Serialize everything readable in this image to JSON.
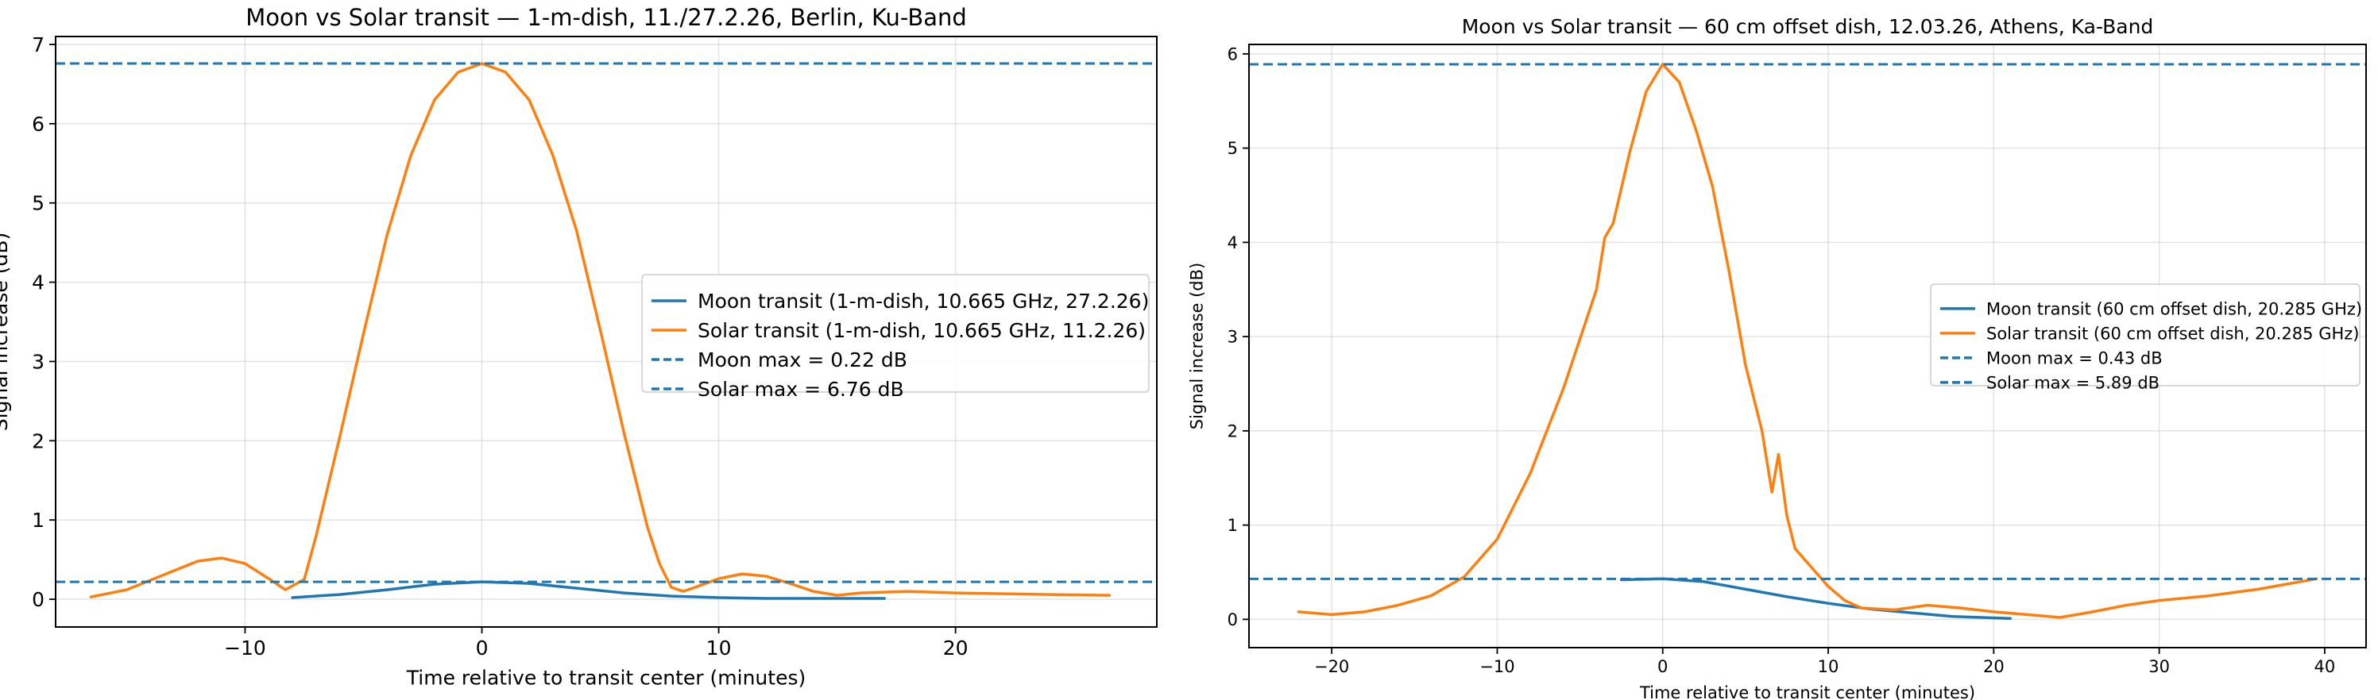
{
  "chart_data": [
    {
      "type": "line",
      "title": "Moon vs Solar transit — 1-m-dish, 11./27.2.26, Berlin, Ku-Band",
      "xlabel": "Time relative to transit center (minutes)",
      "ylabel": "Signal increase (dB)",
      "xlim": [
        -18,
        28.5
      ],
      "ylim": [
        -0.35,
        7.1
      ],
      "xticks": [
        -10,
        0,
        10,
        20
      ],
      "yticks": [
        0,
        1,
        2,
        3,
        4,
        5,
        6,
        7
      ],
      "grid": true,
      "legend_position": "center-right",
      "series": [
        {
          "name": "Moon transit (1-m-dish, 10.665 GHz, 27.2.26)",
          "color": "#1f77b4",
          "style": "solid",
          "x": [
            -8,
            -6,
            -4,
            -2,
            0,
            2,
            4,
            6,
            8,
            10,
            12,
            14,
            17
          ],
          "y": [
            0.02,
            0.06,
            0.12,
            0.19,
            0.22,
            0.2,
            0.14,
            0.08,
            0.04,
            0.02,
            0.01,
            0.01,
            0.01
          ]
        },
        {
          "name": "Solar transit (1-m-dish, 10.665 GHz, 11.2.26)",
          "color": "#ff7f0e",
          "style": "solid",
          "x": [
            -16.5,
            -15,
            -13.5,
            -12,
            -11,
            -10,
            -9,
            -8.3,
            -7.5,
            -7,
            -6,
            -5,
            -4,
            -3,
            -2,
            -1,
            0,
            1,
            2,
            3,
            4,
            5,
            6,
            7,
            7.5,
            8,
            8.5,
            9,
            10,
            11,
            12,
            13,
            14,
            15,
            16,
            18,
            20,
            22,
            24,
            26.5
          ],
          "y": [
            0.03,
            0.12,
            0.3,
            0.48,
            0.52,
            0.45,
            0.26,
            0.12,
            0.25,
            0.8,
            2.05,
            3.35,
            4.6,
            5.6,
            6.3,
            6.65,
            6.76,
            6.65,
            6.3,
            5.6,
            4.65,
            3.4,
            2.1,
            0.9,
            0.45,
            0.15,
            0.1,
            0.15,
            0.26,
            0.32,
            0.29,
            0.2,
            0.1,
            0.05,
            0.08,
            0.1,
            0.08,
            0.07,
            0.06,
            0.05
          ]
        },
        {
          "name": "Moon max = 0.22 dB",
          "color": "#1f77b4",
          "style": "dashed",
          "hline": 0.22
        },
        {
          "name": "Solar max = 6.76 dB",
          "color": "#1f77b4",
          "style": "dashed",
          "hline": 6.76
        }
      ]
    },
    {
      "type": "line",
      "title": "Moon vs Solar transit — 60 cm offset dish, 12.03.26, Athens, Ka-Band",
      "xlabel": "Time relative to transit center (minutes)",
      "ylabel": "Signal increase (dB)",
      "xlim": [
        -25,
        42.5
      ],
      "ylim": [
        -0.3,
        6.1
      ],
      "xticks": [
        -20,
        -10,
        0,
        10,
        20,
        30,
        40
      ],
      "yticks": [
        0,
        1,
        2,
        3,
        4,
        5,
        6
      ],
      "grid": true,
      "legend_position": "center-right",
      "series": [
        {
          "name": "Moon transit (60 cm offset dish, 20.285 GHz)",
          "color": "#1f77b4",
          "style": "solid",
          "x": [
            -2.5,
            0,
            2.5,
            5,
            7.5,
            10,
            12.5,
            15,
            17.5,
            21
          ],
          "y": [
            0.42,
            0.43,
            0.4,
            0.32,
            0.24,
            0.17,
            0.11,
            0.07,
            0.03,
            0.01
          ]
        },
        {
          "name": "Solar transit (60 cm offset dish, 20.285 GHz)",
          "color": "#ff7f0e",
          "style": "solid",
          "x": [
            -22,
            -20,
            -18,
            -16,
            -14,
            -12,
            -10,
            -8,
            -6,
            -4,
            -3.5,
            -3,
            -2,
            -1,
            0,
            1,
            2,
            3,
            4,
            5,
            6,
            6.6,
            7,
            7.5,
            8,
            9,
            10,
            11,
            12,
            14,
            16,
            18,
            20,
            22,
            24,
            26,
            28,
            30,
            33,
            36,
            39.5
          ],
          "y": [
            0.08,
            0.05,
            0.08,
            0.15,
            0.25,
            0.45,
            0.85,
            1.55,
            2.45,
            3.5,
            4.05,
            4.2,
            4.95,
            5.6,
            5.89,
            5.7,
            5.2,
            4.6,
            3.7,
            2.7,
            2.0,
            1.35,
            1.75,
            1.1,
            0.75,
            0.55,
            0.35,
            0.2,
            0.12,
            0.1,
            0.15,
            0.12,
            0.08,
            0.05,
            0.02,
            0.08,
            0.15,
            0.2,
            0.25,
            0.32,
            0.43
          ]
        },
        {
          "name": "Moon max = 0.43 dB",
          "color": "#1f77b4",
          "style": "dashed",
          "hline": 0.43
        },
        {
          "name": "Solar max = 5.89 dB",
          "color": "#1f77b4",
          "style": "dashed",
          "hline": 5.89
        }
      ]
    }
  ]
}
